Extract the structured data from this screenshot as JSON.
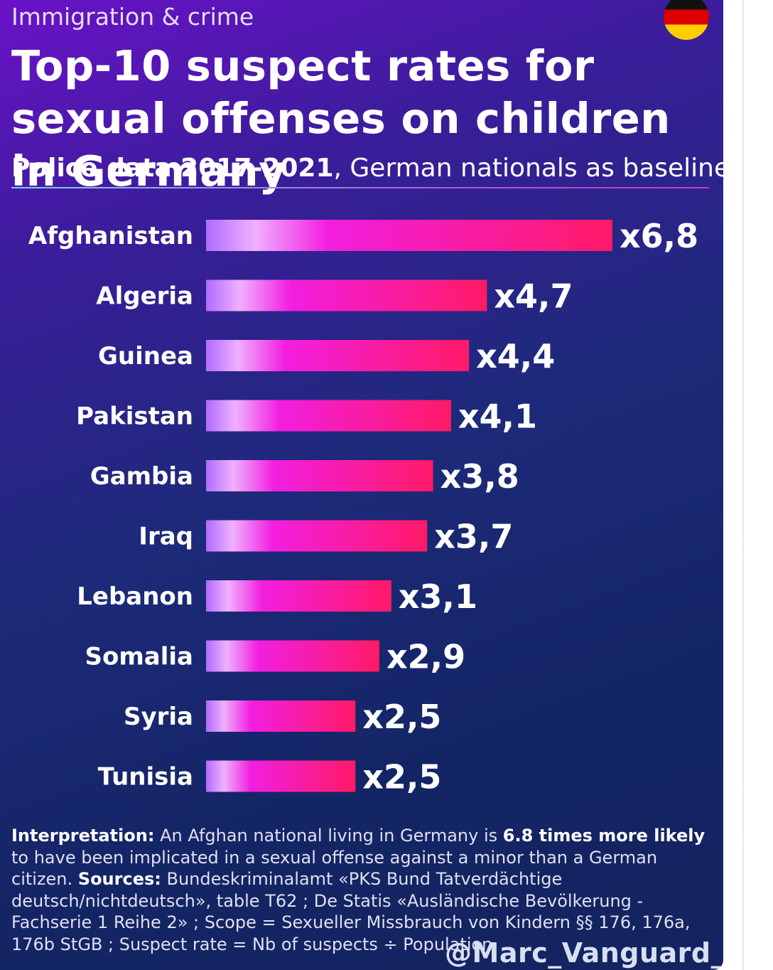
{
  "kicker": "Immigration & crime",
  "title": "Top-10 suspect rates for sexual offenses on children in Germany",
  "subtitle": {
    "bold": "Police data 2017-2021",
    "rest": ", German nationals as baseline"
  },
  "flag_icon": "germany-flag-icon",
  "colors": {
    "bar_start": "#b06bff",
    "bar_mid": "#f21ee0",
    "bar_end": "#ff1a66"
  },
  "chart_data": {
    "type": "bar",
    "orientation": "horizontal",
    "categories": [
      "Afghanistan",
      "Algeria",
      "Guinea",
      "Pakistan",
      "Gambia",
      "Iraq",
      "Lebanon",
      "Somalia",
      "Syria",
      "Tunisia"
    ],
    "values": [
      6.8,
      4.7,
      4.4,
      4.1,
      3.8,
      3.7,
      3.1,
      2.9,
      2.5,
      2.5
    ],
    "value_labels": [
      "x6,8",
      "x4,7",
      "x4,4",
      "x4,1",
      "x3,8",
      "x3,7",
      "x3,1",
      "x2,9",
      "x2,5",
      "x2,5"
    ],
    "xlim": [
      0,
      6.8
    ],
    "grid": false,
    "legend": "none"
  },
  "footnote": {
    "interp_label": "Interpretation:",
    "interp_text_1": " An Afghan national living in Germany is ",
    "interp_bold": "6.8 times more likely",
    "interp_text_2": " to have been implicated in a sexual offense against a minor than a German citizen. ",
    "sources_label": "Sources:",
    "sources_text": " Bundeskriminalamt «PKS Bund Tatverdächtige deutsch/nichtdeutsch», table T62 ; De Statis «Ausländische Bevölkerung - Fachserie 1 Reihe 2» ; Scope = Sexueller Missbrauch von Kindern §§ 176, 176a, 176b StGB ; Suspect rate = Nb of suspects ÷ Population"
  },
  "handle": "@Marc_Vanguard_i"
}
